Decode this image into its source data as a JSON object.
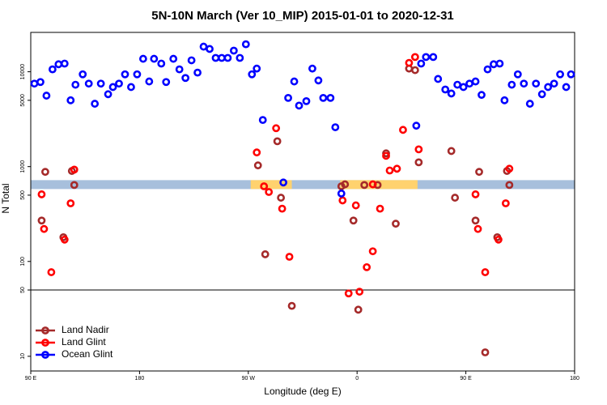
{
  "chart_data": {
    "type": "scatter",
    "title": "5N-10N March (Ver 10_MIP)   2015-01-01 to 2020-12-31",
    "x_label": "Longitude (deg E)",
    "y_label": "N Total",
    "log_y": true,
    "xlim": [
      90,
      540
    ],
    "ylim": [
      7,
      26000
    ],
    "xticks": [
      {
        "value": 90,
        "label": "90 E"
      },
      {
        "value": 180,
        "label": "180"
      },
      {
        "value": 270,
        "label": "90 W"
      },
      {
        "value": 360,
        "label": "0"
      },
      {
        "value": 450,
        "label": "90 E"
      },
      {
        "value": 540,
        "label": "180"
      }
    ],
    "yticks": [
      10,
      50,
      100,
      500,
      1000,
      5000,
      10000
    ],
    "hline": 50,
    "band": {
      "range": [
        580,
        720
      ],
      "color": "#a7bfdc",
      "highlights": [
        [
          272,
          306
        ],
        [
          346,
          410
        ]
      ],
      "highlight_color": "#ffd26e"
    },
    "legend": "bottom-left",
    "series": [
      {
        "name": "Land Nadir",
        "color": "#a52a2a",
        "x": [
          99,
          102,
          117,
          124,
          126,
          278,
          284,
          294,
          297,
          306,
          347,
          350,
          357,
          361,
          366,
          377,
          384,
          392,
          403,
          408,
          411,
          438,
          441,
          458,
          461,
          476,
          484,
          486,
          466
        ],
        "values": [
          270,
          880,
          180,
          900,
          640,
          1030,
          119,
          1850,
          470,
          34,
          620,
          650,
          270,
          31,
          640,
          640,
          1380,
          250,
          10800,
          10400,
          1110,
          1460,
          470,
          270,
          880,
          180,
          900,
          640,
          11
        ]
      },
      {
        "name": "Land Glint",
        "color": "#ff0000",
        "x": [
          99,
          101,
          107,
          118,
          123,
          126,
          277,
          283,
          287,
          293,
          298,
          304,
          348,
          353,
          359,
          362,
          368,
          373,
          373,
          379,
          384,
          387,
          393,
          398,
          403,
          408,
          411,
          458,
          460,
          466,
          477,
          483,
          486
        ],
        "values": [
          510,
          220,
          77,
          170,
          410,
          930,
          1410,
          620,
          540,
          2540,
          360,
          112,
          440,
          46,
          390,
          48,
          87,
          128,
          650,
          360,
          1300,
          910,
          950,
          2440,
          12400,
          14300,
          1520,
          510,
          220,
          77,
          170,
          410,
          950
        ]
      },
      {
        "name": "Ocean Glint",
        "color": "#0000ff",
        "x": [
          93,
          98,
          103,
          108,
          113,
          118,
          123,
          127,
          133,
          138,
          143,
          148,
          154,
          158,
          163,
          168,
          173,
          178,
          183,
          188,
          192,
          198,
          202,
          208,
          213,
          218,
          223,
          228,
          233,
          238,
          243,
          248,
          253,
          258,
          263,
          268,
          273,
          277,
          282,
          299,
          303,
          308,
          312,
          318,
          323,
          328,
          332,
          338,
          342,
          347,
          409,
          413,
          417,
          423,
          427,
          433,
          438,
          443,
          448,
          453,
          458,
          463,
          468,
          473,
          478,
          482,
          488,
          493,
          498,
          503,
          508,
          513,
          518,
          523,
          528,
          533,
          537
        ],
        "values": [
          7500,
          7800,
          5600,
          10600,
          12000,
          12200,
          5000,
          7300,
          9400,
          7500,
          4600,
          7500,
          5800,
          6900,
          7500,
          9400,
          6900,
          9400,
          13700,
          7900,
          13700,
          12200,
          7800,
          13700,
          10600,
          8600,
          13200,
          9800,
          18400,
          17400,
          14000,
          14000,
          14000,
          16700,
          14000,
          19500,
          9400,
          10800,
          3100,
          680,
          5300,
          7900,
          4400,
          4900,
          10800,
          8100,
          5300,
          5300,
          2600,
          520,
          2700,
          12200,
          14300,
          14300,
          8400,
          6500,
          5900,
          7300,
          6900,
          7500,
          7900,
          5700,
          10600,
          12000,
          12200,
          5000,
          7300,
          9400,
          7500,
          4600,
          7500,
          5800,
          6900,
          7500,
          9400,
          6900,
          9400
        ]
      }
    ]
  }
}
